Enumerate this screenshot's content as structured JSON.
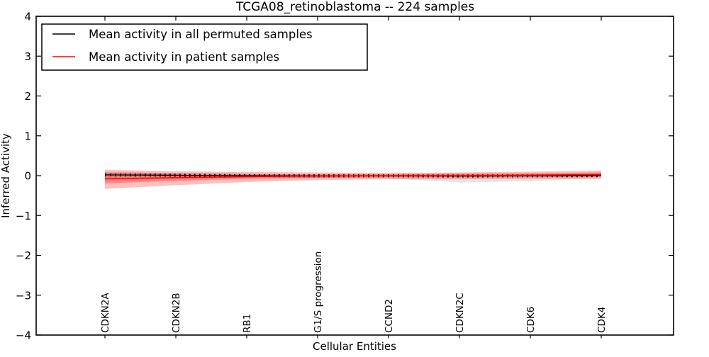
{
  "chart_data": {
    "type": "line",
    "title": "TCGA08_retinoblastoma -- 224 samples",
    "xlabel": "Cellular Entities",
    "ylabel": "Inferred Activity",
    "ylim": [
      -4,
      4
    ],
    "grid": false,
    "yticks": [
      {
        "label": "4",
        "value": 4
      },
      {
        "label": "3",
        "value": 3
      },
      {
        "label": "2",
        "value": 2
      },
      {
        "label": "1",
        "value": 1
      },
      {
        "label": "0",
        "value": 0
      },
      {
        "label": "−1",
        "value": -1
      },
      {
        "label": "−2",
        "value": -2
      },
      {
        "label": "−3",
        "value": -3
      },
      {
        "label": "−4",
        "value": -4
      }
    ],
    "categories": [
      "CDKN2A",
      "CDKN2B",
      "RB1",
      "G1/S progression",
      "CCND2",
      "CDKN2C",
      "CDK6",
      "CDK4"
    ],
    "legend": {
      "position": "upper left",
      "entries": [
        {
          "label": "Mean activity in all permuted samples",
          "color": "#000000"
        },
        {
          "label": "Mean activity in patient samples",
          "color": "#ff0000"
        }
      ]
    },
    "series": [
      {
        "name": "Mean activity in all permuted samples",
        "color": "#000000",
        "line_width": 1.3,
        "marker": "+",
        "values": [
          0.02,
          0.01,
          0.0,
          -0.005,
          -0.005,
          -0.01,
          -0.005,
          0.0
        ]
      },
      {
        "name": "Mean activity in patient samples",
        "color": "#ff0000",
        "line_width": 1.6,
        "marker": null,
        "values": [
          -0.08,
          -0.05,
          -0.025,
          -0.01,
          0.0,
          0.0,
          0.01,
          0.03
        ]
      }
    ],
    "bands": [
      {
        "name": "permuted-samples-spread",
        "color": "rgba(0,0,0,0.10)",
        "upper": [
          0.1,
          0.06,
          0.04,
          0.03,
          0.03,
          0.05,
          0.05,
          0.05
        ],
        "lower": [
          -0.12,
          -0.08,
          -0.05,
          -0.05,
          -0.07,
          -0.17,
          -0.14,
          -0.06
        ]
      },
      {
        "name": "patient-samples-outer-spread",
        "color": "rgba(255,0,0,0.25)",
        "upper": [
          0.15,
          0.11,
          0.09,
          0.08,
          0.07,
          0.08,
          0.1,
          0.13
        ],
        "lower": [
          -0.33,
          -0.24,
          -0.16,
          -0.11,
          -0.09,
          -0.09,
          -0.08,
          -0.08
        ]
      },
      {
        "name": "patient-samples-inner-spread",
        "color": "rgba(255,0,0,0.30)",
        "upper": [
          0.08,
          0.06,
          0.05,
          0.04,
          0.04,
          0.05,
          0.06,
          0.08
        ],
        "lower": [
          -0.19,
          -0.13,
          -0.08,
          -0.05,
          -0.04,
          -0.04,
          -0.03,
          -0.02
        ]
      }
    ]
  }
}
